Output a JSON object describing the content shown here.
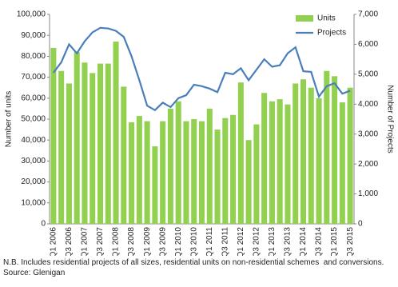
{
  "chart_data": {
    "type": "bar",
    "categories": [
      "Q1 2006",
      null,
      "Q3 2006",
      null,
      "Q1 2007",
      null,
      "Q3 2007",
      null,
      "Q1 2008",
      null,
      "Q3 2008",
      null,
      "Q1 2009",
      null,
      "Q3 2009",
      null,
      "Q1 2010",
      null,
      "Q3 2010",
      null,
      "Q1 2011",
      null,
      "Q3 2011",
      null,
      "Q1 2012",
      null,
      "Q3 2012",
      null,
      "Q1 2013",
      null,
      "Q3 2013",
      null,
      "Q1 2014",
      null,
      "Q3 2014",
      null,
      "Q1 2015",
      null,
      "Q3 2015"
    ],
    "series": [
      {
        "name": "Units",
        "type": "bar",
        "color": "#92d050",
        "values": [
          84000,
          73000,
          67000,
          82000,
          77000,
          72000,
          76500,
          76500,
          87000,
          65500,
          48500,
          51500,
          49000,
          37000,
          49000,
          55000,
          58500,
          49000,
          50000,
          49000,
          55000,
          45000,
          50500,
          52000,
          67500,
          40000,
          47500,
          62500,
          58500,
          59500,
          57000,
          67000,
          69000,
          65000,
          60000,
          73000,
          70500,
          58000,
          65000
        ]
      },
      {
        "name": "Projects",
        "type": "line",
        "axis": "y2",
        "color": "#4a7ebb",
        "values": [
          5050,
          5400,
          6000,
          5700,
          6100,
          6400,
          6550,
          6530,
          6450,
          6250,
          5600,
          4800,
          3950,
          3800,
          4050,
          3900,
          4200,
          4300,
          4650,
          4600,
          4520,
          4400,
          5050,
          5000,
          5200,
          4800,
          5150,
          5500,
          5250,
          5300,
          5700,
          5900,
          5100,
          5080,
          4250,
          4600,
          4700,
          4350,
          4450
        ]
      }
    ],
    "ylabel": "Number of units",
    "y2label": "Number of Projects",
    "ylim": [
      0,
      100000
    ],
    "yticks": [
      0,
      {
        "value": 10000,
        "label": "10,000"
      },
      {
        "value": 20000,
        "label": "20,000"
      },
      {
        "value": 30000,
        "label": "30,000"
      },
      {
        "value": 40000,
        "label": "40,000"
      },
      {
        "value": 50000,
        "label": "50,000"
      },
      {
        "value": 60000,
        "label": "60,000"
      },
      {
        "value": 70000,
        "label": "70,000"
      },
      {
        "value": 80000,
        "label": "80,000"
      },
      {
        "value": 90000,
        "label": "90,000"
      },
      {
        "value": 100000,
        "label": "100,000"
      }
    ],
    "y2lim": [
      0,
      7000
    ],
    "y2ticks": [
      0,
      {
        "value": 1000,
        "label": "1,000"
      },
      {
        "value": 2000,
        "label": "2,000"
      },
      {
        "value": 3000,
        "label": "3,000"
      },
      {
        "value": 4000,
        "label": "4,000"
      },
      {
        "value": 5000,
        "label": "5,000"
      },
      {
        "value": 6000,
        "label": "6,000"
      },
      {
        "value": 7000,
        "label": "7,000"
      }
    ],
    "legend": "top-right",
    "note": "N.B. Includes residential projects of all sizes, residential units on non-residential schemes  and conversions.  Source: Glenigan"
  }
}
